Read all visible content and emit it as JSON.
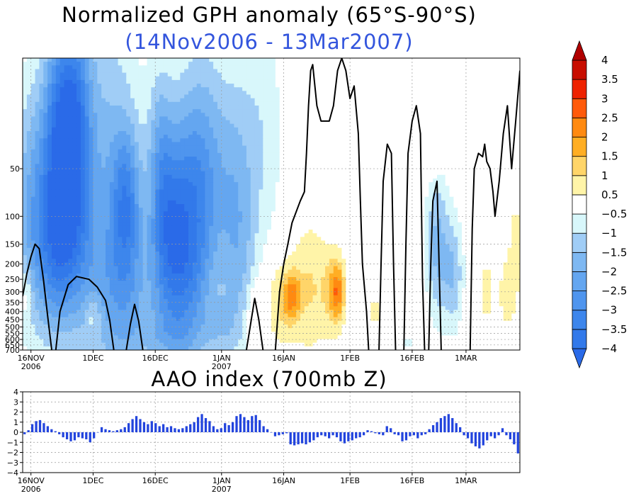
{
  "header": {
    "title_line1": "Normalized GPH anomaly (65°S-90°S)",
    "title_line2": "(14Nov2006 - 13Mar2007)"
  },
  "aao": {
    "title": "AAO index (700mb Z)"
  },
  "colors": {
    "bar": "#2244dd",
    "title2": "#3355dd",
    "contour": "#000000"
  },
  "chart_data": [
    {
      "type": "heatmap",
      "title": "Normalized GPH anomaly (65°S-90°S)",
      "subtitle": "(14Nov2006 - 13Mar2007)",
      "xlabel": "",
      "ylabel": "",
      "y_scale": "log",
      "x_range": [
        "14Nov2006",
        "13Mar2007"
      ],
      "y_range": [
        700,
        10
      ],
      "x_ticks": [
        {
          "label": "16NOV",
          "sub": "2006",
          "day": 2
        },
        {
          "label": "1DEC",
          "sub": "",
          "day": 17
        },
        {
          "label": "16DEC",
          "sub": "",
          "day": 32
        },
        {
          "label": "1JAN",
          "sub": "2007",
          "day": 48
        },
        {
          "label": "16JAN",
          "sub": "",
          "day": 63
        },
        {
          "label": "1FEB",
          "sub": "",
          "day": 79
        },
        {
          "label": "16FEB",
          "sub": "",
          "day": 94
        },
        {
          "label": "1MAR",
          "sub": "",
          "day": 107
        }
      ],
      "y_ticks": [
        {
          "label": "50",
          "p": 50
        },
        {
          "label": "100",
          "p": 100
        },
        {
          "label": "150",
          "p": 150
        },
        {
          "label": "200",
          "p": 200
        },
        {
          "label": "250",
          "p": 250
        },
        {
          "label": "300",
          "p": 300
        },
        {
          "label": "350",
          "p": 350
        },
        {
          "label": "400",
          "p": 400
        },
        {
          "label": "450",
          "p": 450
        },
        {
          "label": "500",
          "p": 500
        },
        {
          "label": "550",
          "p": 550
        },
        {
          "label": "600",
          "p": 600
        },
        {
          "label": "650",
          "p": 650
        },
        {
          "label": "700",
          "p": 700
        }
      ],
      "grid": true,
      "colorbar": {
        "levels": [
          -4,
          -3.5,
          -3,
          -2.5,
          -2,
          -1.5,
          -1,
          -0.5,
          0.5,
          1,
          1.5,
          2,
          2.5,
          3,
          3.5,
          4
        ],
        "labels": [
          "-4",
          "-3.5",
          "-3",
          "-2.5",
          "-2",
          "-1.5",
          "-1",
          "-0.5",
          "0.5",
          "1",
          "1.5",
          "2",
          "2.5",
          "3",
          "3.5",
          "4"
        ],
        "colors": [
          "#2a6ae8",
          "#3279ea",
          "#3d86ec",
          "#4f95ee",
          "#64a6f0",
          "#7eb8f2",
          "#a0cdf6",
          "#d8f7fb",
          "#ffffff",
          "#fff4a8",
          "#ffd569",
          "#ffae24",
          "#ff8a11",
          "#ff5a0a",
          "#ee2200",
          "#c80d00",
          "#b00000"
        ],
        "placement": "right"
      },
      "features": [
        {
          "kind": "neg",
          "day": 8,
          "p": 40,
          "sd": 2.5,
          "sp": 1.4,
          "amp": -1.9
        },
        {
          "kind": "neg",
          "day": 12,
          "p": 30,
          "sd": 3,
          "sp": 1.2,
          "amp": -3.7
        },
        {
          "kind": "neg",
          "day": 3,
          "p": 80,
          "sd": 4,
          "sp": 1.3,
          "amp": -2.0
        },
        {
          "kind": "neg",
          "day": 10,
          "p": 180,
          "sd": 5,
          "sp": 0.8,
          "amp": -1.8
        },
        {
          "kind": "neg",
          "day": 20,
          "p": 60,
          "sd": 6,
          "sp": 2.0,
          "amp": -1.6
        },
        {
          "kind": "neg",
          "day": 25,
          "p": 80,
          "sd": 2.5,
          "sp": 0.75,
          "amp": -2.3
        },
        {
          "kind": "neg",
          "day": 25,
          "p": 300,
          "sd": 5,
          "sp": 0.7,
          "amp": -1.4
        },
        {
          "kind": "neg",
          "day": 33,
          "p": 40,
          "sd": 2,
          "sp": 1.0,
          "amp": -1.0
        },
        {
          "kind": "neg",
          "day": 35,
          "p": 100,
          "sd": 3,
          "sp": 1.1,
          "amp": -2.4
        },
        {
          "kind": "neg",
          "day": 40,
          "p": 80,
          "sd": 3,
          "sp": 1.3,
          "amp": -1.9
        },
        {
          "kind": "neg",
          "day": 38,
          "p": 250,
          "sd": 4,
          "sp": 0.9,
          "amp": -1.6
        },
        {
          "kind": "neg",
          "day": 44,
          "p": 70,
          "sd": 3,
          "sp": 1.4,
          "amp": -1.6
        },
        {
          "kind": "neg",
          "day": 50,
          "p": 50,
          "sd": 4,
          "sp": 1.2,
          "amp": -1.3
        },
        {
          "kind": "neg",
          "day": 52,
          "p": 200,
          "sd": 3,
          "sp": 1.0,
          "amp": -1.1
        },
        {
          "kind": "neg",
          "day": 48,
          "p": 500,
          "sd": 3,
          "sp": 0.3,
          "amp": -0.8
        },
        {
          "kind": "neg",
          "day": 58,
          "p": 30,
          "sd": 4,
          "sp": 1.4,
          "amp": -0.8
        },
        {
          "kind": "neg",
          "day": 32,
          "p": 600,
          "sd": 8,
          "sp": 0.3,
          "amp": -0.7
        },
        {
          "kind": "neg",
          "day": 100,
          "p": 150,
          "sd": 2,
          "sp": 0.8,
          "amp": -1.6
        },
        {
          "kind": "neg",
          "day": 104,
          "p": 230,
          "sd": 1.8,
          "sp": 0.6,
          "amp": -1.4
        },
        {
          "kind": "neg",
          "day": 93,
          "p": 500,
          "sd": 1.5,
          "sp": 0.4,
          "amp": -0.8
        },
        {
          "kind": "pos",
          "day": 1,
          "p": 300,
          "sd": 1,
          "sp": 0.3,
          "amp": 0.8
        },
        {
          "kind": "pos",
          "day": 17,
          "p": 420,
          "sd": 1.2,
          "sp": 0.2,
          "amp": 0.8
        },
        {
          "kind": "pos",
          "day": 56,
          "p": 400,
          "sd": 1.5,
          "sp": 0.3,
          "amp": 0.7
        },
        {
          "kind": "pos",
          "day": 62,
          "p": 350,
          "sd": 2.5,
          "sp": 0.5,
          "amp": 1.0
        },
        {
          "kind": "pos",
          "day": 65,
          "p": 320,
          "sd": 1.4,
          "sp": 0.25,
          "amp": 1.6
        },
        {
          "kind": "pos",
          "day": 69,
          "p": 280,
          "sd": 3,
          "sp": 0.7,
          "amp": 1.0
        },
        {
          "kind": "pos",
          "day": 75,
          "p": 300,
          "sd": 2.2,
          "sp": 0.5,
          "amp": 1.0
        },
        {
          "kind": "pos",
          "day": 76,
          "p": 300,
          "sd": 1.2,
          "sp": 0.28,
          "amp": 1.6
        },
        {
          "kind": "pos",
          "day": 85,
          "p": 400,
          "sd": 1,
          "sp": 0.2,
          "amp": 0.7
        },
        {
          "kind": "pos",
          "day": 93,
          "p": 360,
          "sd": 1.3,
          "sp": 0.3,
          "amp": 0.8
        },
        {
          "kind": "pos",
          "day": 99,
          "p": 40,
          "sd": 1.5,
          "sp": 0.25,
          "amp": 0.8
        },
        {
          "kind": "pos",
          "day": 112,
          "p": 300,
          "sd": 1.2,
          "sp": 0.35,
          "amp": 0.8
        },
        {
          "kind": "pos",
          "day": 117,
          "p": 300,
          "sd": 1.5,
          "sp": 0.4,
          "amp": 0.9
        },
        {
          "kind": "pos",
          "day": 119,
          "p": 150,
          "sd": 1,
          "sp": 0.5,
          "amp": 0.8
        }
      ],
      "zero_contours": [
        [
          [
            0,
            320
          ],
          [
            1,
            230
          ],
          [
            2,
            180
          ],
          [
            3,
            150
          ],
          [
            4,
            160
          ],
          [
            5,
            250
          ],
          [
            6,
            420
          ],
          [
            7,
            700
          ]
        ],
        [
          [
            8,
            700
          ],
          [
            9,
            400
          ],
          [
            11,
            270
          ],
          [
            13,
            240
          ],
          [
            16,
            250
          ],
          [
            18,
            280
          ],
          [
            20,
            340
          ],
          [
            21,
            450
          ],
          [
            22,
            700
          ]
        ],
        [
          [
            25,
            700
          ],
          [
            26,
            480
          ],
          [
            27,
            360
          ],
          [
            28,
            460
          ],
          [
            29,
            700
          ]
        ],
        [
          [
            54,
            700
          ],
          [
            55,
            480
          ],
          [
            56,
            330
          ],
          [
            57,
            450
          ],
          [
            58,
            700
          ]
        ],
        [
          [
            61,
            700
          ],
          [
            62,
            300
          ],
          [
            63,
            200
          ],
          [
            64,
            150
          ],
          [
            65,
            110
          ],
          [
            67,
            80
          ],
          [
            68,
            70
          ],
          [
            68.5,
            40
          ],
          [
            69,
            20
          ],
          [
            69.5,
            12
          ],
          [
            70,
            11
          ],
          [
            71,
            20
          ],
          [
            72,
            25
          ],
          [
            74,
            25
          ],
          [
            75,
            20
          ],
          [
            76,
            12
          ],
          [
            77,
            10
          ],
          [
            78,
            12
          ],
          [
            79,
            18
          ],
          [
            80,
            15
          ],
          [
            81,
            30
          ],
          [
            81.5,
            80
          ],
          [
            82,
            200
          ],
          [
            83,
            400
          ],
          [
            83.5,
            700
          ]
        ],
        [
          [
            86,
            700
          ],
          [
            86.5,
            200
          ],
          [
            87,
            60
          ],
          [
            88,
            35
          ],
          [
            89,
            40
          ],
          [
            89.5,
            200
          ],
          [
            90,
            700
          ]
        ],
        [
          [
            92,
            700
          ],
          [
            92.5,
            150
          ],
          [
            93,
            40
          ],
          [
            94,
            25
          ],
          [
            95,
            20
          ],
          [
            96,
            30
          ],
          [
            96.5,
            250
          ],
          [
            97,
            700
          ]
        ],
        [
          [
            98,
            700
          ],
          [
            98.5,
            200
          ],
          [
            99,
            80
          ],
          [
            100,
            60
          ],
          [
            100.5,
            200
          ],
          [
            101,
            700
          ]
        ],
        [
          [
            108,
            700
          ],
          [
            108.5,
            120
          ],
          [
            109,
            50
          ],
          [
            110,
            40
          ],
          [
            111,
            42
          ],
          [
            111.5,
            35
          ],
          [
            112,
            45
          ],
          [
            112.8,
            50
          ],
          [
            113.5,
            70
          ],
          [
            114,
            100
          ],
          [
            115,
            60
          ],
          [
            116,
            30
          ],
          [
            117,
            20
          ],
          [
            118,
            50
          ],
          [
            119,
            25
          ],
          [
            120,
            12
          ]
        ]
      ]
    },
    {
      "type": "bar",
      "title": "AAO index (700mb Z)",
      "xlabel": "",
      "ylabel": "",
      "ylim": [
        -4,
        4
      ],
      "y_ticks": [
        "4",
        "3",
        "2",
        "1",
        "0",
        "-1",
        "-2",
        "-3",
        "-4"
      ],
      "x_ticks": [
        {
          "label": "16NOV",
          "sub": "2006",
          "day": 2
        },
        {
          "label": "1DEC",
          "sub": "",
          "day": 17
        },
        {
          "label": "16DEC",
          "sub": "",
          "day": 32
        },
        {
          "label": "1JAN",
          "sub": "2007",
          "day": 48
        },
        {
          "label": "16JAN",
          "sub": "",
          "day": 63
        },
        {
          "label": "1FEB",
          "sub": "",
          "day": 79
        },
        {
          "label": "16FEB",
          "sub": "",
          "day": 94
        },
        {
          "label": "1MAR",
          "sub": "",
          "day": 107
        }
      ],
      "grid": true,
      "values": [
        -0.2,
        0.2,
        0.8,
        1.1,
        1.2,
        0.9,
        0.6,
        0.3,
        0.1,
        -0.2,
        -0.5,
        -0.7,
        -0.9,
        -0.8,
        -0.5,
        -0.6,
        -0.7,
        -1.0,
        -0.6,
        0.0,
        0.5,
        0.3,
        0.2,
        0.1,
        0.2,
        0.3,
        0.5,
        0.9,
        1.3,
        1.6,
        1.3,
        1.0,
        0.8,
        1.1,
        0.9,
        0.6,
        0.8,
        0.5,
        0.6,
        0.4,
        0.3,
        0.4,
        0.6,
        0.8,
        1.0,
        1.5,
        1.8,
        1.4,
        1.1,
        0.6,
        0.3,
        0.4,
        0.9,
        0.7,
        1.0,
        1.6,
        1.8,
        1.5,
        1.2,
        1.6,
        1.7,
        1.2,
        0.6,
        0.3,
        0.0,
        -0.4,
        -0.3,
        -0.2,
        -0.1,
        -1.2,
        -1.3,
        -1.2,
        -1.1,
        -1.2,
        -1.0,
        -0.8,
        -0.5,
        -0.3,
        -0.4,
        -0.6,
        -0.3,
        -0.5,
        -0.9,
        -1.1,
        -0.9,
        -0.8,
        -0.6,
        -0.5,
        -0.3,
        0.2,
        0.1,
        -0.1,
        -0.2,
        -0.3,
        0.6,
        0.4,
        -0.2,
        -0.3,
        -0.9,
        -0.8,
        -0.4,
        -0.3,
        -0.6,
        -0.3,
        -0.2,
        0.3,
        0.7,
        1.0,
        1.4,
        1.6,
        1.8,
        1.4,
        0.9,
        0.5,
        -0.3,
        -0.6,
        -1.1,
        -1.4,
        -1.6,
        -1.3,
        -0.8,
        -0.4,
        -0.6,
        -0.3,
        0.4,
        -0.3,
        -0.7,
        -1.2,
        -2.1
      ]
    }
  ]
}
